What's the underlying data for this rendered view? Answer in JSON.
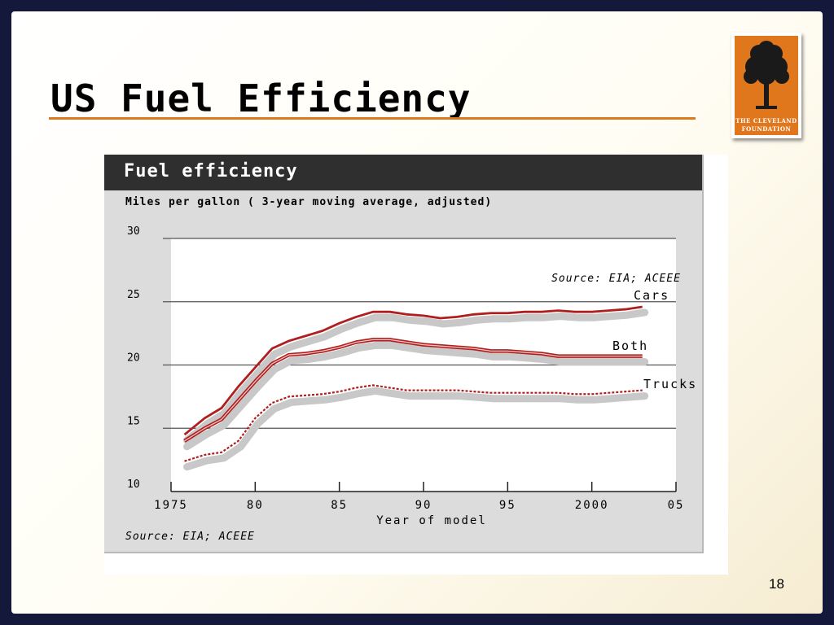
{
  "slide": {
    "title": "US Fuel Efficiency",
    "page_number": "18",
    "accent_color": "#d97a1e",
    "logo": {
      "line1": "THE CLEVELAND",
      "line2": "FOUNDATION",
      "icon": "tree-icon",
      "color": "#e0771c"
    }
  },
  "chart_data": {
    "type": "line",
    "title": "Fuel efficiency",
    "subtitle": "Miles per gallon ( 3-year moving average, adjusted)",
    "xlabel": "Year of model",
    "ylabel": "",
    "source_note": "Source: EIA; ACEEE",
    "footer": "Source: EIA; ACEEE",
    "xlim": [
      1975,
      2005
    ],
    "ylim": [
      10,
      30
    ],
    "x_ticks": [
      1975,
      1980,
      1985,
      1990,
      1995,
      2000,
      2005
    ],
    "x_tick_labels": [
      "1975",
      "80",
      "85",
      "90",
      "95",
      "2000",
      "05"
    ],
    "y_ticks": [
      10,
      15,
      20,
      25,
      30
    ],
    "y_tick_labels": [
      "10",
      "15",
      "20",
      "25",
      "30"
    ],
    "grid": true,
    "series": [
      {
        "name": "Cars",
        "style": "solid",
        "color": "#b01e1e",
        "x": [
          1975.8,
          1977,
          1978,
          1979,
          1980,
          1981,
          1982,
          1983,
          1984,
          1985,
          1986,
          1987,
          1988,
          1989,
          1990,
          1991,
          1992,
          1993,
          1994,
          1995,
          1996,
          1997,
          1998,
          1999,
          2000,
          2001,
          2002,
          2003
        ],
        "y": [
          14.5,
          15.8,
          16.6,
          18.3,
          19.8,
          21.3,
          21.9,
          22.3,
          22.7,
          23.3,
          23.8,
          24.2,
          24.2,
          24.0,
          23.9,
          23.7,
          23.8,
          24.0,
          24.1,
          24.1,
          24.2,
          24.2,
          24.3,
          24.2,
          24.2,
          24.3,
          24.4,
          24.6
        ]
      },
      {
        "name": "Both",
        "style": "double",
        "color": "#b01e1e",
        "x": [
          1975.8,
          1977,
          1978,
          1979,
          1980,
          1981,
          1982,
          1983,
          1984,
          1985,
          1986,
          1987,
          1988,
          1989,
          1990,
          1991,
          1992,
          1993,
          1994,
          1995,
          1996,
          1997,
          1998,
          1999,
          2000,
          2001,
          2002,
          2003
        ],
        "y": [
          14.0,
          15.0,
          15.7,
          17.2,
          18.7,
          20.1,
          20.8,
          20.9,
          21.1,
          21.4,
          21.8,
          22.0,
          22.0,
          21.8,
          21.6,
          21.5,
          21.4,
          21.3,
          21.1,
          21.1,
          21.0,
          20.9,
          20.7,
          20.7,
          20.7,
          20.7,
          20.7,
          20.7
        ]
      },
      {
        "name": "Trucks",
        "style": "dotted",
        "color": "#b01e1e",
        "x": [
          1975.8,
          1977,
          1978,
          1979,
          1980,
          1981,
          1982,
          1983,
          1984,
          1985,
          1986,
          1987,
          1988,
          1989,
          1990,
          1991,
          1992,
          1993,
          1994,
          1995,
          1996,
          1997,
          1998,
          1999,
          2000,
          2001,
          2002,
          2003
        ],
        "y": [
          12.4,
          12.9,
          13.1,
          14.0,
          15.8,
          17.0,
          17.5,
          17.6,
          17.7,
          17.9,
          18.2,
          18.4,
          18.2,
          18.0,
          18.0,
          18.0,
          18.0,
          17.9,
          17.8,
          17.8,
          17.8,
          17.8,
          17.8,
          17.7,
          17.7,
          17.8,
          17.9,
          18.0
        ]
      }
    ]
  }
}
